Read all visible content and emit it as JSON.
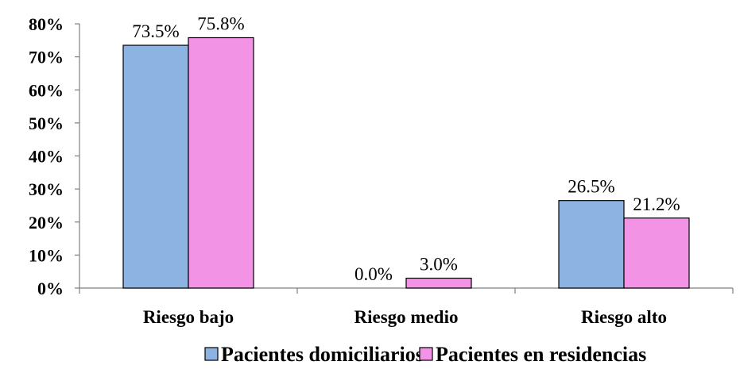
{
  "chart_data": {
    "type": "bar",
    "categories": [
      "Riesgo bajo",
      "Riesgo medio",
      "Riesgo alto"
    ],
    "series": [
      {
        "name": "Pacientes domiciliarios",
        "values": [
          73.5,
          0.0,
          26.5
        ],
        "labels": [
          "73.5%",
          "0.0%",
          "26.5%"
        ],
        "color": "#8db3e2"
      },
      {
        "name": "Pacientes en residencias",
        "values": [
          75.8,
          3.0,
          21.2
        ],
        "labels": [
          "75.8%",
          "3.0%",
          "21.2%"
        ],
        "color": "#f293e6"
      }
    ],
    "y_ticks": [
      "0%",
      "10%",
      "20%",
      "30%",
      "40%",
      "50%",
      "60%",
      "70%",
      "80%"
    ],
    "ylim": [
      0,
      80
    ],
    "grid": false,
    "legend_position": "bottom"
  }
}
